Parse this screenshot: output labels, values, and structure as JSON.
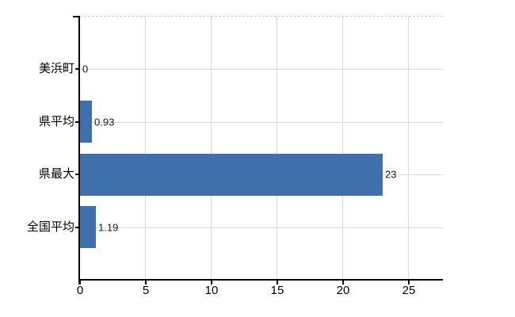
{
  "chart_data": {
    "type": "bar",
    "orientation": "horizontal",
    "title": "",
    "categories": [
      "美浜町",
      "県平均",
      "県最大",
      "全国平均"
    ],
    "values": [
      0,
      0.93,
      23,
      1.19
    ],
    "value_labels": [
      "0",
      "0.93",
      "23",
      "1.19"
    ],
    "x_tick_values": [
      0,
      5,
      10,
      15,
      20,
      25
    ],
    "x_tick_labels": [
      "0",
      "5",
      "10",
      "15",
      "20",
      "25"
    ],
    "xlim": [
      0,
      27.6
    ],
    "grid": true,
    "legend": false,
    "colors": {
      "bar": "#3f6fad",
      "axis": "#000000",
      "gridline": "#d6dbd4",
      "top_border": "#d2cdc9",
      "label": "#000000",
      "background": "#ffffff"
    }
  }
}
